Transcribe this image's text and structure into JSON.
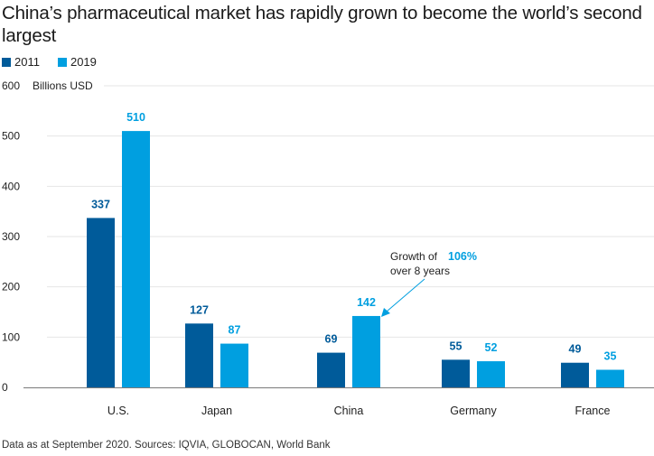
{
  "title": "China’s pharmaceutical market has rapidly grown to become the world’s second largest",
  "source": "Data as at September 2020. Sources: IQVIA, GLOBOCAN, World Bank",
  "colors": {
    "s2011": "#005b9a",
    "s2019": "#009fe0",
    "grid": "#e6e6e6",
    "axis": "#7a7a7a"
  },
  "chart_data": {
    "type": "bar",
    "title": "China’s pharmaceutical market has rapidly grown to become the world’s second largest",
    "xlabel": "",
    "ylabel": "Billions USD",
    "ylim": [
      0,
      600
    ],
    "yticks": [
      "0",
      "100",
      "200",
      "300",
      "400",
      "500",
      "600"
    ],
    "grid": true,
    "legend_position": "top-left",
    "categories": [
      "U.S.",
      "Japan",
      "China",
      "Germany",
      "France"
    ],
    "series": [
      {
        "name": "2011",
        "values": [
          337,
          127,
          69,
          55,
          49
        ]
      },
      {
        "name": "2019",
        "values": [
          510,
          87,
          142,
          52,
          35
        ]
      }
    ],
    "annotation": {
      "line1_prefix": "Growth of",
      "highlight": "106%",
      "line2": "over 8 years",
      "target_category": "China",
      "target_series": "2019"
    }
  }
}
